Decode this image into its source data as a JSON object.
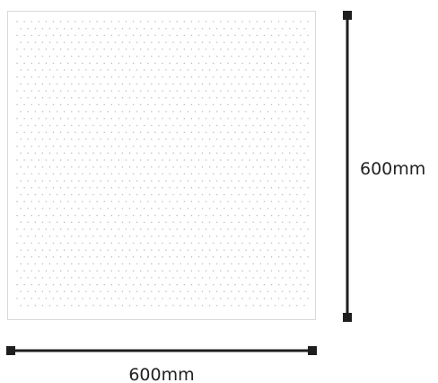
{
  "panel": {
    "fill_color": "#ffffff",
    "border_color": "#d9d9d9",
    "dot_color": "#bdbdbd"
  },
  "dimensions": {
    "height_label": "600mm",
    "width_label": "600mm",
    "line_color": "#1e1e1e"
  }
}
